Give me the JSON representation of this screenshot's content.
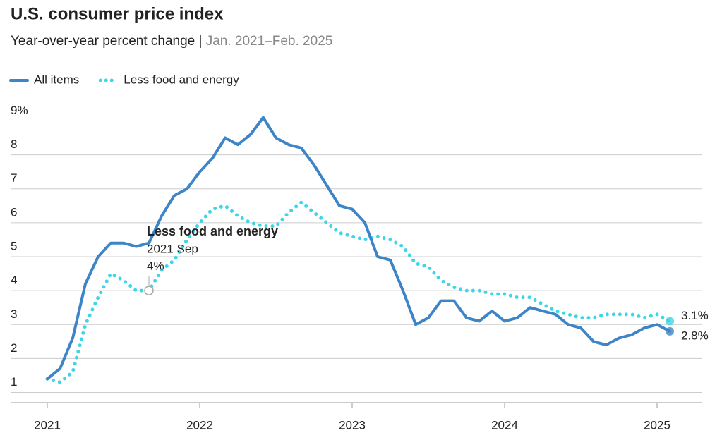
{
  "chart_data": {
    "type": "line",
    "title": "U.S. consumer price index",
    "subtitle": "Year-over-year percent change |",
    "date_range": "Jan. 2021–Feb. 2025",
    "x": [
      "2021 Jan",
      "2021 Feb",
      "2021 Mar",
      "2021 Apr",
      "2021 May",
      "2021 Jun",
      "2021 Jul",
      "2021 Aug",
      "2021 Sep",
      "2021 Oct",
      "2021 Nov",
      "2021 Dec",
      "2022 Jan",
      "2022 Feb",
      "2022 Mar",
      "2022 Apr",
      "2022 May",
      "2022 Jun",
      "2022 Jul",
      "2022 Aug",
      "2022 Sep",
      "2022 Oct",
      "2022 Nov",
      "2022 Dec",
      "2023 Jan",
      "2023 Feb",
      "2023 Mar",
      "2023 Apr",
      "2023 May",
      "2023 Jun",
      "2023 Jul",
      "2023 Aug",
      "2023 Sep",
      "2023 Oct",
      "2023 Nov",
      "2023 Dec",
      "2024 Jan",
      "2024 Feb",
      "2024 Mar",
      "2024 Apr",
      "2024 May",
      "2024 Jun",
      "2024 Jul",
      "2024 Aug",
      "2024 Sep",
      "2024 Oct",
      "2024 Nov",
      "2024 Dec",
      "2025 Jan",
      "2025 Feb"
    ],
    "xticks": [
      {
        "value": "2021 Jan",
        "label": "2021"
      },
      {
        "value": "2022 Jan",
        "label": "2022"
      },
      {
        "value": "2023 Jan",
        "label": "2023"
      },
      {
        "value": "2024 Jan",
        "label": "2024"
      },
      {
        "value": "2025 Jan",
        "label": "2025"
      }
    ],
    "ylim": [
      0.7,
      9.3
    ],
    "yticks": [
      1,
      2,
      3,
      4,
      5,
      6,
      7,
      8,
      {
        "value": 9,
        "label": "9%"
      }
    ],
    "grid": true,
    "series": [
      {
        "name": "All items",
        "color": "#3d85c6",
        "style": "solid",
        "values": [
          1.4,
          1.7,
          2.6,
          4.2,
          5.0,
          5.4,
          5.4,
          5.3,
          5.4,
          6.2,
          6.8,
          7.0,
          7.5,
          7.9,
          8.5,
          8.3,
          8.6,
          9.1,
          8.5,
          8.3,
          8.2,
          7.7,
          7.1,
          6.5,
          6.4,
          6.0,
          5.0,
          4.9,
          4.0,
          3.0,
          3.2,
          3.7,
          3.7,
          3.2,
          3.1,
          3.4,
          3.1,
          3.2,
          3.5,
          3.4,
          3.3,
          3.0,
          2.9,
          2.5,
          2.4,
          2.6,
          2.7,
          2.9,
          3.0,
          2.8
        ],
        "value_labels": [
          null,
          null,
          null,
          null,
          null,
          null,
          null,
          null,
          null,
          null,
          null,
          null,
          null,
          null,
          null,
          null,
          null,
          null,
          null,
          null,
          null,
          null,
          null,
          null,
          null,
          null,
          null,
          null,
          null,
          null,
          null,
          null,
          null,
          null,
          null,
          null,
          null,
          null,
          null,
          null,
          null,
          null,
          null,
          null,
          null,
          null,
          null,
          null,
          null,
          "2.8%"
        ]
      },
      {
        "name": "Less food and energy",
        "color": "#3dd6e8",
        "style": "dotted",
        "values": [
          1.4,
          1.3,
          1.6,
          3.0,
          3.8,
          4.5,
          4.3,
          4.0,
          4.0,
          4.6,
          4.9,
          5.5,
          6.0,
          6.4,
          6.5,
          6.2,
          6.0,
          5.9,
          5.9,
          6.3,
          6.6,
          6.3,
          6.0,
          5.7,
          5.6,
          5.5,
          5.6,
          5.5,
          5.3,
          4.8,
          4.7,
          4.3,
          4.1,
          4.0,
          4.0,
          3.9,
          3.9,
          3.8,
          3.8,
          3.6,
          3.4,
          3.3,
          3.2,
          3.2,
          3.3,
          3.3,
          3.3,
          3.2,
          3.3,
          3.1
        ],
        "value_labels": [
          null,
          null,
          null,
          null,
          null,
          null,
          null,
          null,
          "4%",
          null,
          null,
          null,
          null,
          null,
          null,
          null,
          null,
          null,
          null,
          null,
          null,
          null,
          null,
          null,
          null,
          null,
          null,
          null,
          null,
          null,
          null,
          null,
          null,
          null,
          null,
          null,
          null,
          null,
          null,
          null,
          null,
          null,
          null,
          null,
          null,
          null,
          null,
          null,
          null,
          "3.1%"
        ]
      }
    ]
  }
}
